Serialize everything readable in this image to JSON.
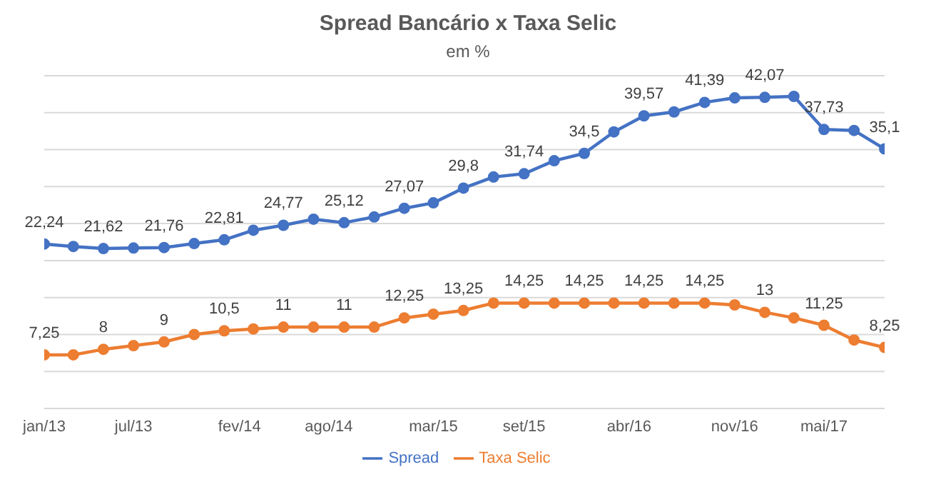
{
  "chart_data": {
    "type": "line",
    "title": "Spread Bancário x Taxa Selic",
    "subtitle": "em %",
    "x": [
      "2013-01",
      "2013-03",
      "2013-05",
      "2013-07",
      "2013-09",
      "2013-11",
      "2014-01",
      "2014-03",
      "2014-05",
      "2014-07",
      "2014-09",
      "2014-11",
      "2015-01",
      "2015-03",
      "2015-05",
      "2015-07",
      "2015-09",
      "2015-11",
      "2016-01",
      "2016-03",
      "2016-05",
      "2016-07",
      "2016-09",
      "2016-11",
      "2017-01",
      "2017-03",
      "2017-05",
      "2017-07",
      "2017-09"
    ],
    "xlim": [
      "2013-01",
      "2017-09"
    ],
    "xticks": [
      {
        "value": "2013-01",
        "label": "jan/13"
      },
      {
        "value": "2013-07",
        "label": "jul/13"
      },
      {
        "value": "2014-02",
        "label": "fev/14"
      },
      {
        "value": "2014-08",
        "label": "ago/14"
      },
      {
        "value": "2015-03",
        "label": "mar/15"
      },
      {
        "value": "2015-09",
        "label": "set/15"
      },
      {
        "value": "2016-04",
        "label": "abr/16"
      },
      {
        "value": "2016-11",
        "label": "nov/16"
      },
      {
        "value": "2017-05",
        "label": "mai/17"
      }
    ],
    "ylim": [
      0,
      45
    ],
    "yticks": [
      {
        "value": 0,
        "label": null
      },
      {
        "value": 5,
        "label": null
      },
      {
        "value": 10,
        "label": null
      },
      {
        "value": 15,
        "label": null
      },
      {
        "value": 20,
        "label": null
      },
      {
        "value": 25,
        "label": null
      },
      {
        "value": 30,
        "label": null
      },
      {
        "value": 35,
        "label": null
      },
      {
        "value": 40,
        "label": null
      },
      {
        "value": 45,
        "label": null
      }
    ],
    "tick_labels": "x",
    "grid": "y",
    "legend": "bottom",
    "marker": "circle",
    "line_style": "solid",
    "series": [
      {
        "name": "Spread",
        "color": "#4472c4",
        "values": [
          22.24,
          21.9,
          21.62,
          21.7,
          21.76,
          22.3,
          22.81,
          24.1,
          24.77,
          25.6,
          25.12,
          25.9,
          27.07,
          27.8,
          29.8,
          31.3,
          31.74,
          33.5,
          34.5,
          37.4,
          39.57,
          40.1,
          41.39,
          42.0,
          42.07,
          42.2,
          37.73,
          37.6,
          35.1
        ],
        "value_labels": [
          "22,24",
          null,
          "21,62",
          null,
          "21,76",
          null,
          "22,81",
          null,
          "24,77",
          null,
          "25,12",
          null,
          "27,07",
          null,
          "29,8",
          null,
          "31,74",
          null,
          "34,5",
          null,
          "39,57",
          null,
          "41,39",
          null,
          "42,07",
          null,
          "37,73",
          null,
          "35,1"
        ]
      },
      {
        "name": "Taxa Selic",
        "color": "#ed7d31",
        "values": [
          7.25,
          7.25,
          8,
          8.5,
          9,
          10,
          10.5,
          10.75,
          11,
          11,
          11,
          11,
          12.25,
          12.75,
          13.25,
          14.25,
          14.25,
          14.25,
          14.25,
          14.25,
          14.25,
          14.25,
          14.25,
          14,
          13,
          12.25,
          11.25,
          9.25,
          8.25
        ],
        "value_labels": [
          "7,25",
          null,
          "8",
          null,
          "9",
          null,
          "10,5",
          null,
          "11",
          null,
          "11",
          null,
          "12,25",
          null,
          "13,25",
          null,
          "14,25",
          null,
          "14,25",
          null,
          "14,25",
          null,
          "14,25",
          null,
          "13",
          null,
          "11,25",
          null,
          "8,25"
        ]
      }
    ]
  }
}
